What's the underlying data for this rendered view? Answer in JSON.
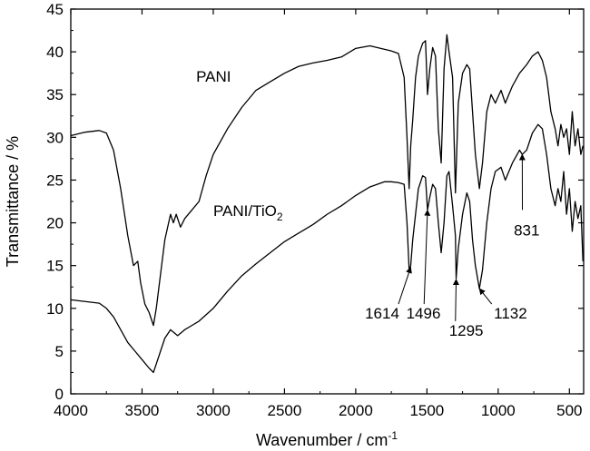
{
  "chart_data": {
    "type": "line",
    "xlabel": "Wavenumber / cm",
    "xlabel_sup": "-1",
    "ylabel": "Transmittance / %",
    "xlim": [
      4000,
      400
    ],
    "ylim": [
      0,
      45
    ],
    "x_ticks": [
      4000,
      3500,
      3000,
      2500,
      2000,
      1500,
      1000,
      500
    ],
    "y_ticks": [
      0,
      5,
      10,
      15,
      20,
      25,
      30,
      35,
      40,
      45
    ],
    "grid": false,
    "legend": "none",
    "series": [
      {
        "name": "PANI",
        "color": "#000000",
        "points": [
          [
            4000,
            30.2
          ],
          [
            3900,
            30.6
          ],
          [
            3800,
            30.8
          ],
          [
            3750,
            30.5
          ],
          [
            3700,
            28.5
          ],
          [
            3650,
            24.0
          ],
          [
            3600,
            18.5
          ],
          [
            3560,
            15.0
          ],
          [
            3530,
            15.5
          ],
          [
            3510,
            13.0
          ],
          [
            3480,
            10.5
          ],
          [
            3450,
            9.5
          ],
          [
            3420,
            8.0
          ],
          [
            3400,
            10.0
          ],
          [
            3370,
            14.0
          ],
          [
            3340,
            18.0
          ],
          [
            3300,
            21.0
          ],
          [
            3280,
            20.0
          ],
          [
            3260,
            21.0
          ],
          [
            3230,
            19.5
          ],
          [
            3200,
            20.5
          ],
          [
            3150,
            21.5
          ],
          [
            3100,
            22.5
          ],
          [
            3050,
            25.5
          ],
          [
            3000,
            28.0
          ],
          [
            2900,
            31.0
          ],
          [
            2800,
            33.5
          ],
          [
            2700,
            35.5
          ],
          [
            2600,
            36.5
          ],
          [
            2500,
            37.5
          ],
          [
            2400,
            38.3
          ],
          [
            2300,
            38.7
          ],
          [
            2200,
            39.0
          ],
          [
            2100,
            39.4
          ],
          [
            2000,
            40.4
          ],
          [
            1900,
            40.7
          ],
          [
            1800,
            40.3
          ],
          [
            1750,
            40.1
          ],
          [
            1700,
            39.8
          ],
          [
            1660,
            37.0
          ],
          [
            1640,
            30.0
          ],
          [
            1625,
            24.0
          ],
          [
            1614,
            29.0
          ],
          [
            1600,
            32.0
          ],
          [
            1580,
            37.0
          ],
          [
            1560,
            39.5
          ],
          [
            1530,
            41.0
          ],
          [
            1510,
            41.3
          ],
          [
            1496,
            35.0
          ],
          [
            1480,
            38.0
          ],
          [
            1460,
            40.5
          ],
          [
            1440,
            39.5
          ],
          [
            1420,
            31.0
          ],
          [
            1400,
            27.0
          ],
          [
            1380,
            38.0
          ],
          [
            1360,
            42.0
          ],
          [
            1345,
            40.0
          ],
          [
            1320,
            37.0
          ],
          [
            1300,
            23.5
          ],
          [
            1280,
            34.0
          ],
          [
            1250,
            37.5
          ],
          [
            1220,
            38.5
          ],
          [
            1200,
            38.0
          ],
          [
            1180,
            33.0
          ],
          [
            1160,
            28.0
          ],
          [
            1132,
            24.0
          ],
          [
            1110,
            27.0
          ],
          [
            1080,
            33.0
          ],
          [
            1050,
            35.0
          ],
          [
            1020,
            34.0
          ],
          [
            980,
            35.5
          ],
          [
            950,
            34.0
          ],
          [
            900,
            36.0
          ],
          [
            850,
            37.5
          ],
          [
            800,
            38.5
          ],
          [
            760,
            39.5
          ],
          [
            720,
            40.0
          ],
          [
            690,
            39.0
          ],
          [
            660,
            37.0
          ],
          [
            630,
            33.0
          ],
          [
            600,
            31.0
          ],
          [
            580,
            29.0
          ],
          [
            560,
            31.5
          ],
          [
            540,
            30.0
          ],
          [
            520,
            31.0
          ],
          [
            500,
            28.0
          ],
          [
            480,
            33.0
          ],
          [
            460,
            29.0
          ],
          [
            440,
            31.0
          ],
          [
            420,
            28.0
          ],
          [
            405,
            29.0
          ]
        ]
      },
      {
        "name": "PANI/TiO2",
        "color": "#000000",
        "points": [
          [
            4000,
            11.0
          ],
          [
            3900,
            10.8
          ],
          [
            3800,
            10.6
          ],
          [
            3750,
            10.0
          ],
          [
            3700,
            9.0
          ],
          [
            3650,
            7.5
          ],
          [
            3600,
            6.0
          ],
          [
            3550,
            5.0
          ],
          [
            3500,
            4.0
          ],
          [
            3450,
            3.0
          ],
          [
            3420,
            2.5
          ],
          [
            3400,
            3.5
          ],
          [
            3370,
            5.0
          ],
          [
            3340,
            6.5
          ],
          [
            3300,
            7.5
          ],
          [
            3250,
            6.8
          ],
          [
            3200,
            7.5
          ],
          [
            3150,
            8.0
          ],
          [
            3100,
            8.5
          ],
          [
            3000,
            10.0
          ],
          [
            2900,
            12.0
          ],
          [
            2800,
            13.8
          ],
          [
            2700,
            15.2
          ],
          [
            2600,
            16.5
          ],
          [
            2500,
            17.8
          ],
          [
            2400,
            18.8
          ],
          [
            2300,
            19.8
          ],
          [
            2200,
            21.0
          ],
          [
            2100,
            22.0
          ],
          [
            2000,
            23.2
          ],
          [
            1900,
            24.2
          ],
          [
            1800,
            24.8
          ],
          [
            1750,
            24.8
          ],
          [
            1700,
            24.7
          ],
          [
            1660,
            24.5
          ],
          [
            1640,
            20.0
          ],
          [
            1625,
            14.5
          ],
          [
            1614,
            15.0
          ],
          [
            1600,
            18.0
          ],
          [
            1580,
            21.0
          ],
          [
            1560,
            24.0
          ],
          [
            1530,
            25.5
          ],
          [
            1510,
            25.3
          ],
          [
            1496,
            21.5
          ],
          [
            1480,
            23.0
          ],
          [
            1460,
            24.5
          ],
          [
            1440,
            24.0
          ],
          [
            1420,
            20.0
          ],
          [
            1400,
            16.5
          ],
          [
            1380,
            20.0
          ],
          [
            1360,
            25.5
          ],
          [
            1345,
            26.0
          ],
          [
            1320,
            22.0
          ],
          [
            1300,
            18.5
          ],
          [
            1295,
            13.5
          ],
          [
            1280,
            17.0
          ],
          [
            1250,
            21.0
          ],
          [
            1220,
            23.5
          ],
          [
            1200,
            22.5
          ],
          [
            1180,
            18.0
          ],
          [
            1160,
            15.0
          ],
          [
            1132,
            12.3
          ],
          [
            1110,
            14.5
          ],
          [
            1080,
            20.0
          ],
          [
            1050,
            24.0
          ],
          [
            1020,
            26.0
          ],
          [
            980,
            26.5
          ],
          [
            950,
            25.0
          ],
          [
            900,
            27.0
          ],
          [
            850,
            28.5
          ],
          [
            831,
            28.0
          ],
          [
            800,
            28.5
          ],
          [
            760,
            30.5
          ],
          [
            720,
            31.5
          ],
          [
            690,
            31.0
          ],
          [
            660,
            28.0
          ],
          [
            630,
            24.0
          ],
          [
            600,
            22.0
          ],
          [
            580,
            24.0
          ],
          [
            560,
            22.5
          ],
          [
            540,
            26.0
          ],
          [
            520,
            21.0
          ],
          [
            500,
            24.0
          ],
          [
            480,
            19.0
          ],
          [
            460,
            22.5
          ],
          [
            440,
            20.5
          ],
          [
            420,
            22.0
          ],
          [
            405,
            15.5
          ]
        ]
      }
    ],
    "annotations": [
      {
        "text": "PANI",
        "x": 3120,
        "y": 36.5,
        "arrow": false
      },
      {
        "text": "PANI/TiO",
        "sub": "2",
        "x": 3000,
        "y": 20.8,
        "arrow": false
      },
      {
        "text": "1614",
        "x": 1935,
        "y": 8.8,
        "arrow": true,
        "arrow_from": [
          1700,
          10.5
        ],
        "arrow_to": [
          1614,
          14.8
        ]
      },
      {
        "text": "1496",
        "x": 1645,
        "y": 8.8,
        "arrow": true,
        "arrow_from": [
          1520,
          10.5
        ],
        "arrow_to": [
          1496,
          21.5
        ]
      },
      {
        "text": "1295",
        "x": 1345,
        "y": 6.8,
        "arrow": true,
        "arrow_from": [
          1300,
          8.5
        ],
        "arrow_to": [
          1295,
          13.4
        ]
      },
      {
        "text": "1132",
        "x": 1030,
        "y": 8.8,
        "arrow": true,
        "arrow_from": [
          1045,
          10.5
        ],
        "arrow_to": [
          1132,
          12.3
        ]
      },
      {
        "text": "831",
        "x": 890,
        "y": 18.5,
        "arrow": true,
        "arrow_from": [
          830,
          21.5
        ],
        "arrow_to": [
          831,
          28.0
        ]
      }
    ]
  }
}
